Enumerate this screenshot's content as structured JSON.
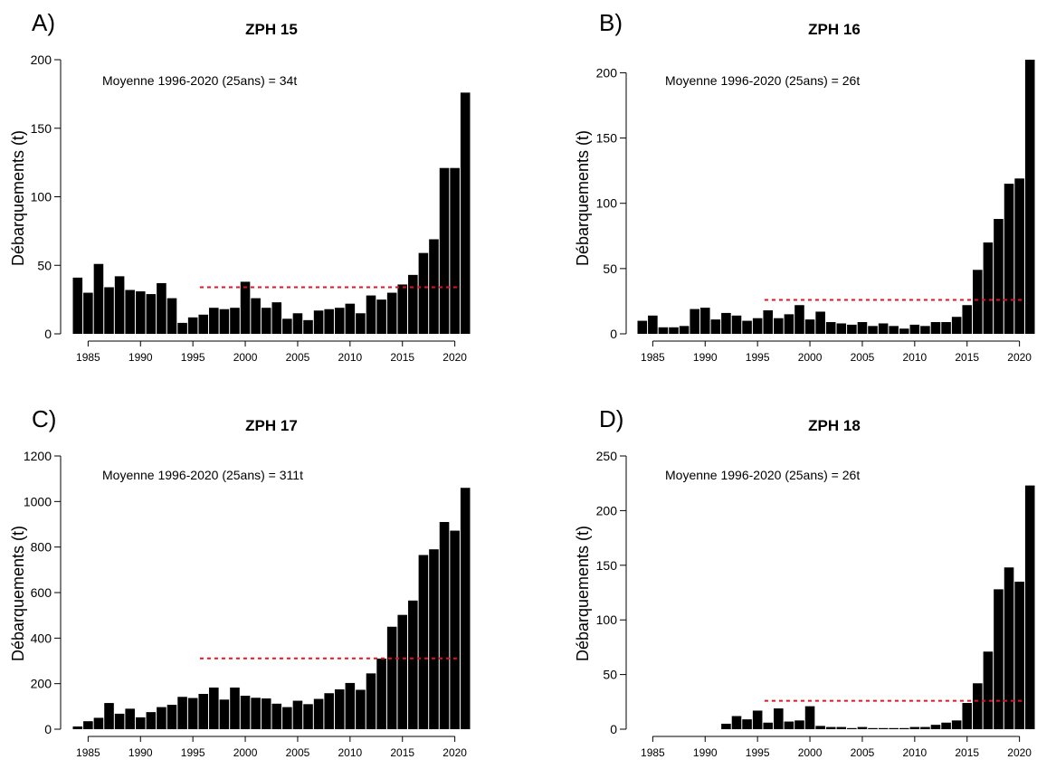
{
  "panels": [
    {
      "letter": "A)",
      "title": "ZPH 15",
      "average_label": "Moyenne 1996-2020 (25ans) = 34t",
      "ylabel": "Débarquements (t)"
    },
    {
      "letter": "B)",
      "title": "ZPH 16",
      "average_label": "Moyenne 1996-2020 (25ans) = 26t",
      "ylabel": "Débarquements (t)"
    },
    {
      "letter": "C)",
      "title": "ZPH 17",
      "average_label": "Moyenne 1996-2020 (25ans) = 311t",
      "ylabel": "Débarquements (t)"
    },
    {
      "letter": "D)",
      "title": "ZPH 18",
      "average_label": "Moyenne 1996-2020 (25ans) = 26t",
      "ylabel": "Débarquements (t)"
    }
  ],
  "chart_data": [
    {
      "type": "bar",
      "title": "ZPH 15",
      "ylabel": "Débarquements (t)",
      "xlabel": "",
      "x": [
        1984,
        1985,
        1986,
        1987,
        1988,
        1989,
        1990,
        1991,
        1992,
        1993,
        1994,
        1995,
        1996,
        1997,
        1998,
        1999,
        2000,
        2001,
        2002,
        2003,
        2004,
        2005,
        2006,
        2007,
        2008,
        2009,
        2010,
        2011,
        2012,
        2013,
        2014,
        2015,
        2016,
        2017,
        2018,
        2019,
        2020,
        2021
      ],
      "values": [
        41,
        30,
        51,
        34,
        42,
        32,
        31,
        29,
        37,
        26,
        8,
        12,
        14,
        19,
        18,
        19,
        38,
        26,
        19,
        23,
        11,
        15,
        10,
        17,
        18,
        19,
        22,
        15,
        28,
        25,
        30,
        36,
        43,
        59,
        69,
        121,
        121,
        176
      ],
      "ylim": [
        0,
        200
      ],
      "yticks": [
        "0",
        "50",
        "100",
        "150",
        "200"
      ],
      "xticks": [
        "1985",
        "1990",
        "1995",
        "2000",
        "2005",
        "2010",
        "2015",
        "2020"
      ],
      "average": {
        "value": 34,
        "from": 1996,
        "to": 2020,
        "color": "#e8121d",
        "style": "dotted"
      },
      "bar_color": "#000000",
      "grid": false
    },
    {
      "type": "bar",
      "title": "ZPH 16",
      "ylabel": "Débarquements (t)",
      "xlabel": "",
      "x": [
        1984,
        1985,
        1986,
        1987,
        1988,
        1989,
        1990,
        1991,
        1992,
        1993,
        1994,
        1995,
        1996,
        1997,
        1998,
        1999,
        2000,
        2001,
        2002,
        2003,
        2004,
        2005,
        2006,
        2007,
        2008,
        2009,
        2010,
        2011,
        2012,
        2013,
        2014,
        2015,
        2016,
        2017,
        2018,
        2019,
        2020,
        2021
      ],
      "values": [
        10,
        14,
        5,
        5,
        6,
        19,
        20,
        11,
        16,
        14,
        10,
        12,
        18,
        12,
        15,
        22,
        11,
        17,
        9,
        8,
        7,
        9,
        6,
        8,
        6,
        4,
        7,
        6,
        9,
        9,
        13,
        22,
        49,
        70,
        88,
        115,
        119,
        210
      ],
      "ylim": [
        0,
        210
      ],
      "yticks": [
        "0",
        "50",
        "100",
        "150",
        "200"
      ],
      "xticks": [
        "1985",
        "1990",
        "1995",
        "2000",
        "2005",
        "2010",
        "2015",
        "2020"
      ],
      "average": {
        "value": 26,
        "from": 1996,
        "to": 2020,
        "color": "#e8121d",
        "style": "dotted"
      },
      "bar_color": "#000000",
      "grid": false
    },
    {
      "type": "bar",
      "title": "ZPH 17",
      "ylabel": "Débarquements (t)",
      "xlabel": "",
      "x": [
        1984,
        1985,
        1986,
        1987,
        1988,
        1989,
        1990,
        1991,
        1992,
        1993,
        1994,
        1995,
        1996,
        1997,
        1998,
        1999,
        2000,
        2001,
        2002,
        2003,
        2004,
        2005,
        2006,
        2007,
        2008,
        2009,
        2010,
        2011,
        2012,
        2013,
        2014,
        2015,
        2016,
        2017,
        2018,
        2019,
        2020,
        2021
      ],
      "values": [
        12,
        35,
        50,
        115,
        68,
        90,
        52,
        75,
        97,
        107,
        142,
        137,
        155,
        183,
        130,
        183,
        147,
        138,
        135,
        112,
        97,
        125,
        110,
        133,
        158,
        175,
        203,
        173,
        245,
        310,
        450,
        502,
        565,
        765,
        790,
        910,
        872,
        1060
      ],
      "ylim": [
        0,
        1200
      ],
      "yticks": [
        "0",
        "200",
        "400",
        "600",
        "800",
        "1000",
        "1200"
      ],
      "xticks": [
        "1985",
        "1990",
        "1995",
        "2000",
        "2005",
        "2010",
        "2015",
        "2020"
      ],
      "average": {
        "value": 311,
        "from": 1996,
        "to": 2020,
        "color": "#e8121d",
        "style": "dotted"
      },
      "bar_color": "#000000",
      "grid": false
    },
    {
      "type": "bar",
      "title": "ZPH 18",
      "ylabel": "Débarquements (t)",
      "xlabel": "",
      "x": [
        1984,
        1985,
        1986,
        1987,
        1988,
        1989,
        1990,
        1991,
        1992,
        1993,
        1994,
        1995,
        1996,
        1997,
        1998,
        1999,
        2000,
        2001,
        2002,
        2003,
        2004,
        2005,
        2006,
        2007,
        2008,
        2009,
        2010,
        2011,
        2012,
        2013,
        2014,
        2015,
        2016,
        2017,
        2018,
        2019,
        2020,
        2021
      ],
      "values": [
        0,
        0,
        0,
        0,
        0,
        0,
        0,
        0,
        5,
        12,
        9,
        17,
        6,
        19,
        7,
        8,
        21,
        3,
        2,
        2,
        1,
        2,
        1,
        1,
        1,
        1,
        2,
        2,
        4,
        6,
        8,
        24,
        42,
        71,
        128,
        148,
        135,
        223
      ],
      "ylim": [
        0,
        250
      ],
      "yticks": [
        "0",
        "50",
        "100",
        "150",
        "200",
        "250"
      ],
      "xticks": [
        "1985",
        "1990",
        "1995",
        "2000",
        "2005",
        "2010",
        "2015",
        "2020"
      ],
      "average": {
        "value": 26,
        "from": 1996,
        "to": 2020,
        "color": "#e8121d",
        "style": "dotted"
      },
      "bar_color": "#000000",
      "grid": false
    }
  ]
}
